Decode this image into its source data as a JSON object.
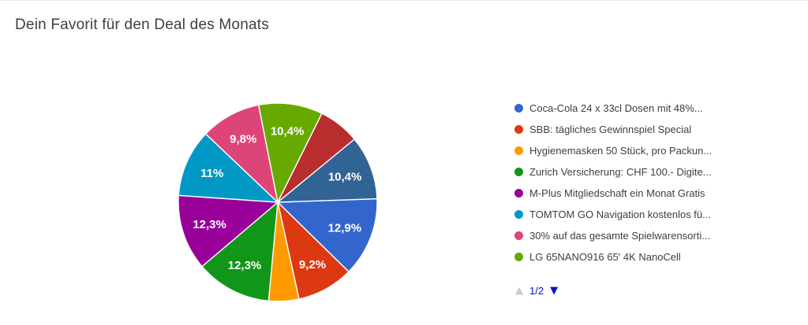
{
  "chart_data": {
    "type": "pie",
    "title": "Dein Favorit für den Deal des Monats",
    "legend_position": "right",
    "start_angle_deg": 88,
    "slices": [
      {
        "label": "Coca-Cola 24 x 33cl Dosen mit 48%...",
        "value": 12.9,
        "display": "12,9%",
        "color": "#3366CC",
        "legend_visible": true
      },
      {
        "label": "SBB: tägliches Gewinnspiel Special",
        "value": 9.2,
        "display": "9,2%",
        "color": "#DC3912",
        "legend_visible": true
      },
      {
        "label": "Hygienemasken 50 Stück, pro Packun...",
        "value": 4.9,
        "display": "",
        "color": "#FF9900",
        "legend_visible": true
      },
      {
        "label": "Zurich Versicherung: CHF 100.- Digite...",
        "value": 12.3,
        "display": "12,3%",
        "color": "#109618",
        "legend_visible": true
      },
      {
        "label": "M-Plus Mitgliedschaft ein Monat Gratis",
        "value": 12.3,
        "display": "12,3%",
        "color": "#990099",
        "legend_visible": true
      },
      {
        "label": "TOMTOM GO Navigation kostenlos fü...",
        "value": 11,
        "display": "11%",
        "color": "#0099C6",
        "legend_visible": true
      },
      {
        "label": "30% auf das gesamte Spielwarensorti...",
        "value": 9.8,
        "display": "9,8%",
        "color": "#DD4477",
        "legend_visible": true
      },
      {
        "label": "LG 65NANO916 65' 4K NanoCell",
        "value": 10.4,
        "display": "10,4%",
        "color": "#66AA00",
        "legend_visible": true
      },
      {
        "label": "",
        "value": 6.7,
        "display": "",
        "color": "#B82E2E",
        "legend_visible": false
      },
      {
        "label": "",
        "value": 10.4,
        "display": "10,4%",
        "color": "#316395",
        "legend_visible": false
      }
    ],
    "legend": {
      "pagination": {
        "up_icon": "▲",
        "up_color": "#cccccc",
        "label": "1/2",
        "label_color": "#0011cc",
        "down_icon": "▼",
        "down_color": "#0011cc"
      }
    },
    "style": {
      "title_color": "#3c4043",
      "legend_text_color": "#3c4043",
      "slice_label_color": "#ffffff",
      "slice_border_color": "#ffffff",
      "background": "#ffffff"
    }
  }
}
